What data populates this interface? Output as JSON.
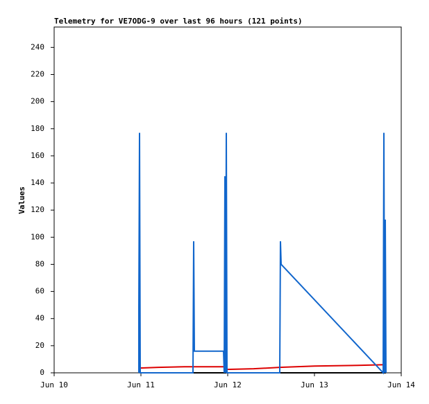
{
  "chart_data": {
    "type": "line",
    "title": "Telemetry for VE7ODG-9 over last 96 hours (121 points)",
    "y_label": "Values",
    "xlim": [
      0,
      4
    ],
    "xticks": [
      {
        "value": 0,
        "label": "Jun 10"
      },
      {
        "value": 1,
        "label": "Jun 11"
      },
      {
        "value": 2,
        "label": "Jun 12"
      },
      {
        "value": 3,
        "label": "Jun 13"
      },
      {
        "value": 4,
        "label": "Jun 14"
      }
    ],
    "ylim": [
      0,
      255
    ],
    "yticks": [
      0,
      20,
      40,
      60,
      80,
      100,
      120,
      140,
      160,
      180,
      200,
      220,
      240
    ],
    "series": [
      {
        "color": "#000000",
        "x": [
          0.984,
          3.824
        ],
        "values": [
          0,
          0
        ]
      },
      {
        "color": "#dd0000",
        "x": [
          0.984,
          1.2,
          1.5,
          1.96,
          1.984,
          2.3,
          2.6,
          3.0,
          3.5,
          3.824
        ],
        "values": [
          3.5,
          4,
          4.5,
          4.5,
          2.5,
          3,
          4,
          5,
          5.5,
          6
        ]
      },
      {
        "color": "#1166cc",
        "x": [
          0.976,
          0.976,
          0.984,
          0.992,
          1.6,
          1.608,
          1.616,
          1.952,
          1.96,
          1.968,
          1.976,
          1.984,
          1.992,
          2.6,
          2.608,
          2.616,
          3.792,
          3.8,
          3.808,
          3.816,
          3.824
        ],
        "values": [
          0,
          48,
          177,
          0,
          0,
          97,
          16,
          16,
          0,
          145,
          0,
          177,
          0,
          0,
          97,
          80,
          0,
          177,
          0,
          113,
          0
        ]
      }
    ]
  }
}
